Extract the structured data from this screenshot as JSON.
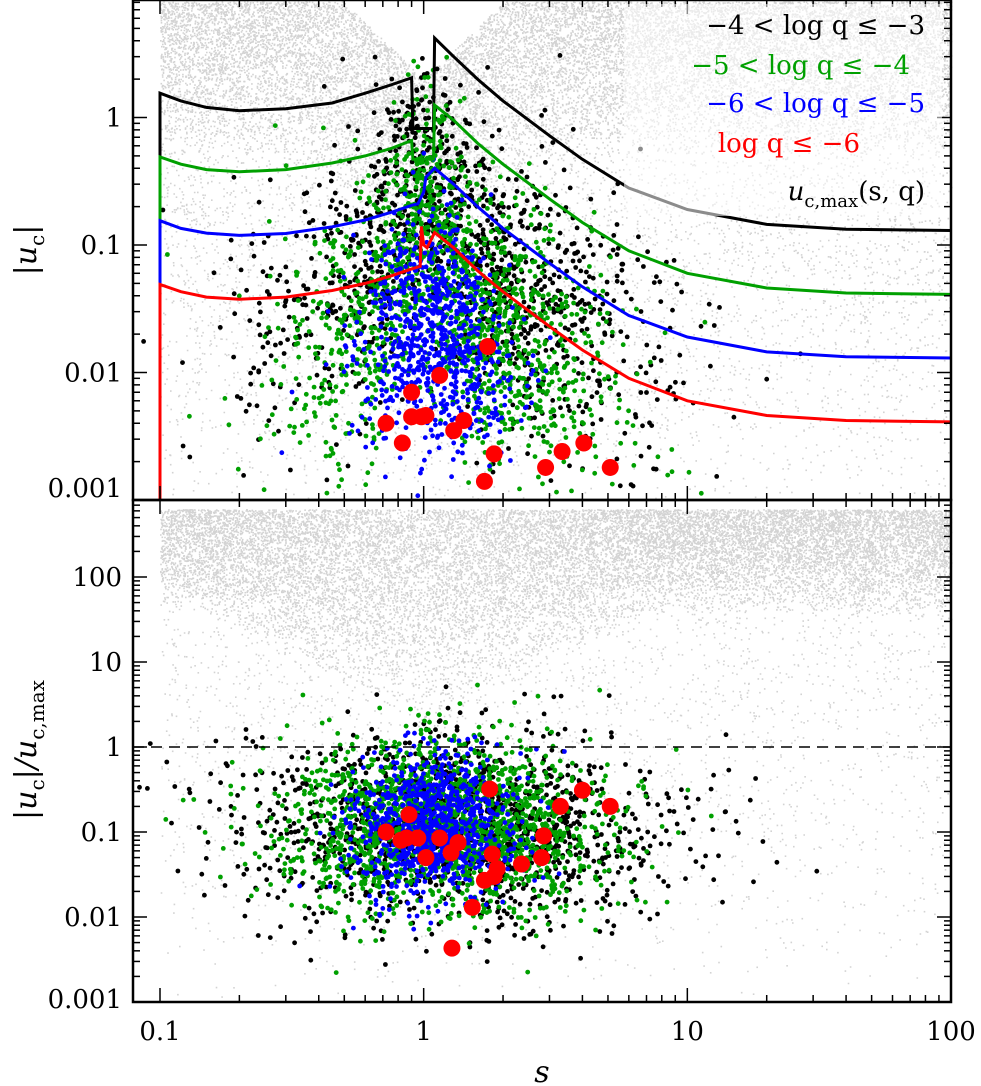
{
  "chart_data": [
    {
      "panel": "top",
      "type": "scatter",
      "xscale": "log",
      "yscale": "log",
      "xlim": [
        0.1,
        100
      ],
      "ylim": [
        0.001,
        8
      ],
      "ylabel": "|u_c|",
      "ylabel_parts": {
        "main": "|u",
        "sub": "c",
        "close": "|"
      },
      "xticks": [
        {
          "value": 0.1,
          "label": "0.1"
        },
        {
          "value": 1,
          "label": "1"
        },
        {
          "value": 10,
          "label": "10"
        },
        {
          "value": 100,
          "label": "100"
        }
      ],
      "yticks": [
        {
          "value": 1,
          "label": "1"
        },
        {
          "value": 0.1,
          "label": "0.1"
        },
        {
          "value": 0.01,
          "label": "0.01"
        },
        {
          "value": 0.001,
          "label": "0.001"
        }
      ],
      "legend": [
        {
          "label": "−4 < log q ≤ −3",
          "color": "#000000"
        },
        {
          "label": "−5 < log q ≤ −4",
          "color": "#00a000"
        },
        {
          "label": "−6 < log q ≤ −5",
          "color": "#0000ff"
        },
        {
          "label": "log q ≤ −6",
          "color": "#ff0000"
        },
        {
          "label": "u_c,max(s, q)",
          "color": "#000000",
          "parts": {
            "main": "u",
            "sub": "c,max",
            "rest": "(s, q)"
          }
        }
      ],
      "curves": [
        {
          "name": "u_c,max log q = -3",
          "color": "#000000",
          "points": [
            [
              0.1,
              0.001
            ],
            [
              0.1,
              1.55
            ],
            [
              0.12,
              1.35
            ],
            [
              0.15,
              1.2
            ],
            [
              0.2,
              1.13
            ],
            [
              0.3,
              1.17
            ],
            [
              0.45,
              1.3
            ],
            [
              0.6,
              1.55
            ],
            [
              0.75,
              1.8
            ],
            [
              0.9,
              2.05
            ],
            [
              0.91,
              0.82
            ],
            [
              0.98,
              0.82
            ],
            [
              1.0,
              0.82
            ],
            [
              1.02,
              0.82
            ],
            [
              1.09,
              0.82
            ],
            [
              1.1,
              4.2
            ],
            [
              1.3,
              3.0
            ],
            [
              1.6,
              2.0
            ],
            [
              2,
              1.35
            ],
            [
              3,
              0.72
            ],
            [
              4,
              0.47
            ],
            [
              6,
              0.28
            ],
            [
              10,
              0.19
            ],
            [
              20,
              0.145
            ],
            [
              40,
              0.133
            ],
            [
              100,
              0.13
            ]
          ]
        },
        {
          "name": "u_c,max log q = -4",
          "color": "#00a000",
          "points": [
            [
              0.1,
              0.001
            ],
            [
              0.1,
              0.49
            ],
            [
              0.12,
              0.43
            ],
            [
              0.15,
              0.39
            ],
            [
              0.2,
              0.375
            ],
            [
              0.3,
              0.39
            ],
            [
              0.45,
              0.44
            ],
            [
              0.6,
              0.5
            ],
            [
              0.75,
              0.57
            ],
            [
              0.9,
              0.66
            ],
            [
              0.91,
              0.47
            ],
            [
              1.0,
              0.47
            ],
            [
              1.09,
              0.47
            ],
            [
              1.1,
              1.25
            ],
            [
              1.3,
              0.95
            ],
            [
              1.6,
              0.63
            ],
            [
              2,
              0.43
            ],
            [
              3,
              0.23
            ],
            [
              4,
              0.15
            ],
            [
              6,
              0.09
            ],
            [
              10,
              0.06
            ],
            [
              20,
              0.046
            ],
            [
              40,
              0.042
            ],
            [
              100,
              0.041
            ]
          ]
        },
        {
          "name": "u_c,max log q = -5",
          "color": "#0000ff",
          "points": [
            [
              0.1,
              0.001
            ],
            [
              0.1,
              0.155
            ],
            [
              0.12,
              0.135
            ],
            [
              0.15,
              0.124
            ],
            [
              0.2,
              0.119
            ],
            [
              0.3,
              0.123
            ],
            [
              0.45,
              0.139
            ],
            [
              0.6,
              0.157
            ],
            [
              0.75,
              0.18
            ],
            [
              0.9,
              0.205
            ],
            [
              0.95,
              0.21
            ],
            [
              1.0,
              0.26
            ],
            [
              1.02,
              0.34
            ],
            [
              1.1,
              0.4
            ],
            [
              1.3,
              0.3
            ],
            [
              1.6,
              0.2
            ],
            [
              2,
              0.135
            ],
            [
              3,
              0.072
            ],
            [
              4,
              0.047
            ],
            [
              6,
              0.028
            ],
            [
              10,
              0.019
            ],
            [
              20,
              0.0145
            ],
            [
              40,
              0.0133
            ],
            [
              100,
              0.013
            ]
          ]
        },
        {
          "name": "u_c,max log q = -6",
          "color": "#ff0000",
          "points": [
            [
              0.1,
              0.001
            ],
            [
              0.1,
              0.049
            ],
            [
              0.12,
              0.043
            ],
            [
              0.15,
              0.039
            ],
            [
              0.2,
              0.0375
            ],
            [
              0.3,
              0.039
            ],
            [
              0.45,
              0.044
            ],
            [
              0.6,
              0.05
            ],
            [
              0.75,
              0.057
            ],
            [
              0.9,
              0.065
            ],
            [
              0.97,
              0.068
            ],
            [
              0.98,
              0.14
            ],
            [
              1.0,
              0.1
            ],
            [
              1.03,
              0.095
            ],
            [
              1.1,
              0.125
            ],
            [
              1.3,
              0.095
            ],
            [
              1.6,
              0.063
            ],
            [
              2,
              0.043
            ],
            [
              3,
              0.023
            ],
            [
              4,
              0.015
            ],
            [
              6,
              0.009
            ],
            [
              10,
              0.006
            ],
            [
              20,
              0.0046
            ],
            [
              40,
              0.0042
            ],
            [
              100,
              0.0041
            ]
          ]
        }
      ],
      "red_points": [
        [
          0.72,
          0.004
        ],
        [
          0.83,
          0.0028
        ],
        [
          0.9,
          0.007
        ],
        [
          0.9,
          0.0045
        ],
        [
          0.98,
          0.0045
        ],
        [
          1.02,
          0.0046
        ],
        [
          1.15,
          0.0095
        ],
        [
          1.3,
          0.0035
        ],
        [
          1.42,
          0.0042
        ],
        [
          1.75,
          0.016
        ],
        [
          1.85,
          0.0023
        ],
        [
          1.7,
          0.0014
        ],
        [
          2.9,
          0.0018
        ],
        [
          3.35,
          0.0024
        ],
        [
          4.05,
          0.0028
        ],
        [
          5.1,
          0.0018
        ]
      ],
      "background_fill": "#d3d3d3"
    },
    {
      "panel": "bottom",
      "type": "scatter",
      "xscale": "log",
      "yscale": "log",
      "xlim": [
        0.1,
        100
      ],
      "ylim": [
        0.001,
        600
      ],
      "xlabel": "s",
      "ylabel": "|u_c|/u_c,max",
      "ylabel_parts": {
        "main": "|u",
        "sub": "c",
        "mid": "|/u",
        "sub2": "c,max"
      },
      "xticks": [
        {
          "value": 0.1,
          "label": "0.1"
        },
        {
          "value": 1,
          "label": "1"
        },
        {
          "value": 10,
          "label": "10"
        },
        {
          "value": 100,
          "label": "100"
        }
      ],
      "yticks": [
        {
          "value": 100,
          "label": "100"
        },
        {
          "value": 10,
          "label": "10"
        },
        {
          "value": 1,
          "label": "1"
        },
        {
          "value": 0.1,
          "label": "0.1"
        },
        {
          "value": 0.01,
          "label": "0.01"
        },
        {
          "value": 0.001,
          "label": "0.001"
        }
      ],
      "reference_line": {
        "y": 1,
        "style": "dashed"
      },
      "red_points": [
        [
          0.72,
          0.1
        ],
        [
          0.82,
          0.08
        ],
        [
          0.88,
          0.16
        ],
        [
          0.86,
          0.085
        ],
        [
          0.95,
          0.085
        ],
        [
          1.02,
          0.05
        ],
        [
          1.15,
          0.085
        ],
        [
          1.27,
          0.057
        ],
        [
          1.35,
          0.075
        ],
        [
          1.28,
          0.0043
        ],
        [
          1.53,
          0.013
        ],
        [
          1.7,
          0.027
        ],
        [
          1.78,
          0.32
        ],
        [
          1.82,
          0.055
        ],
        [
          1.85,
          0.03
        ],
        [
          1.9,
          0.037
        ],
        [
          2.35,
          0.042
        ],
        [
          2.8,
          0.05
        ],
        [
          2.85,
          0.09
        ],
        [
          3.3,
          0.2
        ],
        [
          4.0,
          0.31
        ],
        [
          5.1,
          0.2
        ]
      ],
      "background_fill": "#d3d3d3"
    }
  ]
}
